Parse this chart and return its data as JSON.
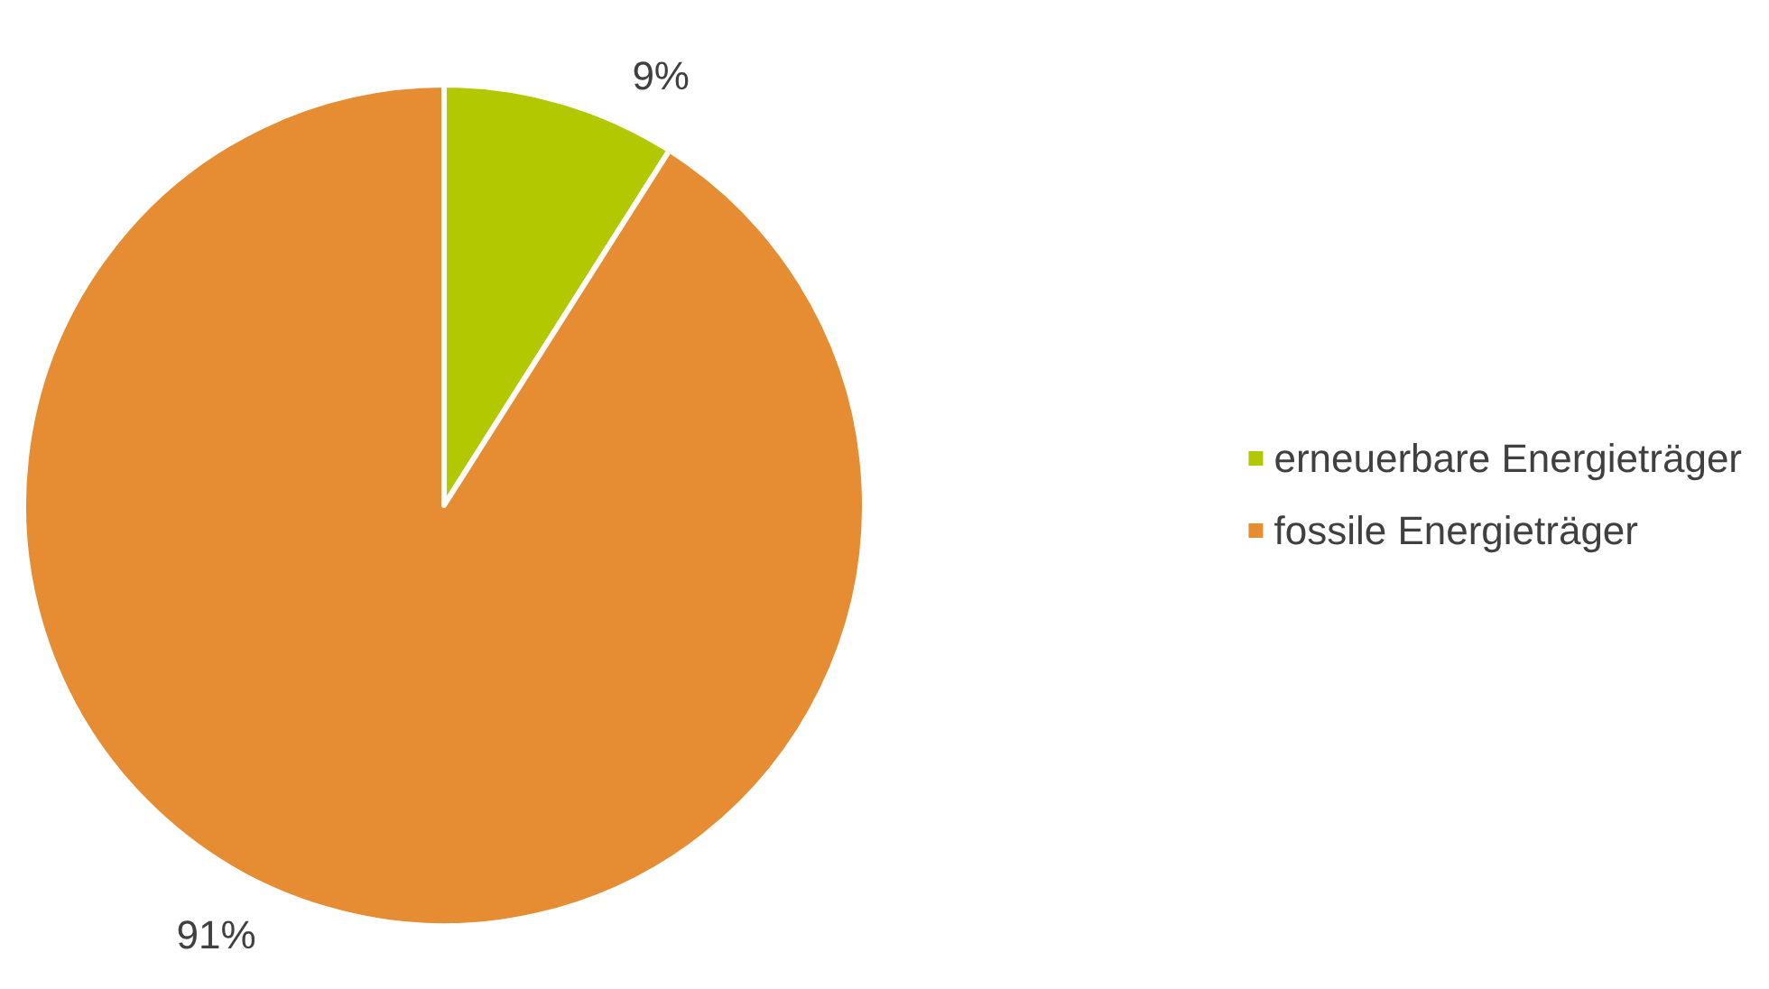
{
  "chart_data": {
    "type": "pie",
    "categories": [
      "erneuerbare Energieträger",
      "fossile Energieträger"
    ],
    "values": [
      9,
      91
    ],
    "colors": [
      "#b2c800",
      "#e68c32"
    ],
    "value_labels": [
      "9%",
      "91%"
    ],
    "legend": "right"
  }
}
